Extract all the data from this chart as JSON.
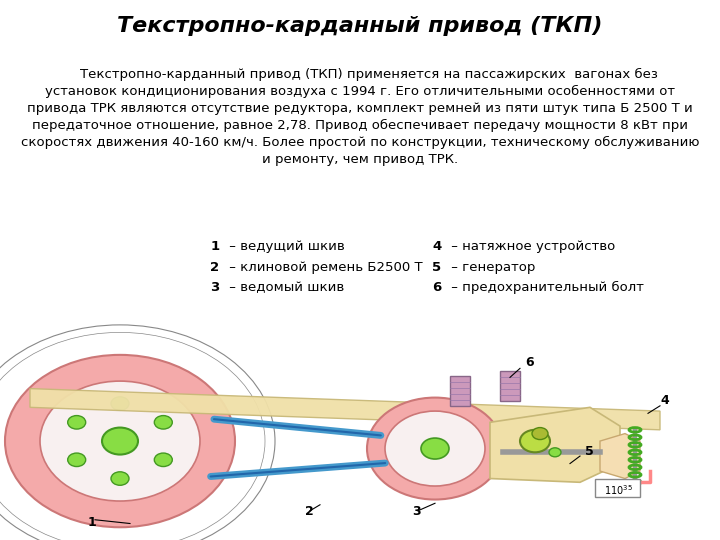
{
  "title": "Текстропно-карданный привод (ТКП)",
  "body_text": "    Текстропно-карданный привод (ТКП) применяется на пассажирских  вагонах без\nустановок кондиционирования воздуха с 1994 г. Его отличительными особенностями от\nпривода ТРК являются отсутствие редуктора, комплект ремней из пяти штук типа Б 2500 Т и\nпередаточное отношение, равное 2,78. Привод обеспечивает передачу мощности 8 кВт при\nскоростях движения 40-160 км/ч. Более простой по конструкции, техническому обслуживанию\nи ремонту, чем привод ТРК.",
  "legend_left": [
    "1 – ведущий шкив",
    "2 – клиновой ремень Б2500 Т",
    "3 – ведомый шкив"
  ],
  "legend_right": [
    "4 – натяжное устройство",
    "5 – генератор",
    "6 – предохранительный болт"
  ],
  "bg_color": "#ffffff",
  "title_color": "#000000",
  "text_color": "#000000",
  "title_fontsize": 16,
  "body_fontsize": 9.5,
  "legend_fontsize": 9.5
}
